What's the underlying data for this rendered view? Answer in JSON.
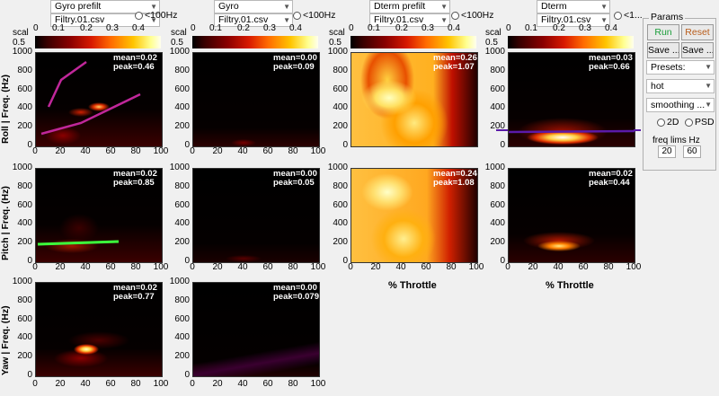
{
  "columns": [
    {
      "dropdown_label": "Gyro prefilt",
      "file": "Filtry.01.csv"
    },
    {
      "dropdown_label": "Gyro",
      "file": "Filtry.01.csv"
    },
    {
      "dropdown_label": "Dterm prefilt",
      "file": "Filtry.01.csv"
    },
    {
      "dropdown_label": "Dterm",
      "file": "Filtry.01.csv"
    }
  ],
  "radio_lt100": "<100Hz",
  "radio_lt100_truncated": "<1...",
  "colorbar": {
    "scal_label": "scal",
    "scal_value": "0.5",
    "ticks": [
      "0",
      "0.1",
      "0.2",
      "0.3",
      "0.4"
    ]
  },
  "axes": {
    "y_ticks": [
      "1000",
      "800",
      "600",
      "400",
      "200",
      "0"
    ],
    "x_ticks": [
      "0",
      "20",
      "40",
      "60",
      "80",
      "100"
    ],
    "x_label": "% Throttle",
    "row_labels": [
      "Roll  |  Freq. (Hz)",
      "Pitch  |  Freq. (Hz)",
      "Yaw  |  Freq. (Hz)"
    ]
  },
  "stats": {
    "r1c1": {
      "mean": "mean=0.02",
      "peak": "peak=0.46"
    },
    "r1c2": {
      "mean": "mean=0.00",
      "peak": "peak=0.09"
    },
    "r1c3": {
      "mean": "mean=0.26",
      "peak": "peak=1.07"
    },
    "r1c4": {
      "mean": "mean=0.03",
      "peak": "peak=0.66"
    },
    "r2c1": {
      "mean": "mean=0.02",
      "peak": "peak=0.85"
    },
    "r2c2": {
      "mean": "mean=0.00",
      "peak": "peak=0.05"
    },
    "r2c3": {
      "mean": "mean=0.24",
      "peak": "peak=1.08"
    },
    "r2c4": {
      "mean": "mean=0.02",
      "peak": "peak=0.44"
    },
    "r3c1": {
      "mean": "mean=0.02",
      "peak": "peak=0.77"
    },
    "r3c2": {
      "mean": "mean=0.00",
      "peak": "peak=0.079"
    }
  },
  "params": {
    "title": "Params",
    "run": "Run",
    "reset": "Reset",
    "save1": "Save ...",
    "save2": "Save ...",
    "presets": "Presets:",
    "colormap": "hot",
    "smoothing": "smoothing ...",
    "radio_2d": "2D",
    "radio_psd": "PSD",
    "freq_lims_label": "freq lims Hz",
    "freq_min": "20",
    "freq_max": "60"
  },
  "colors": {
    "run": "#1a9e3a",
    "reset": "#b85c1a",
    "overlay_magenta": "#c0279a",
    "overlay_green": "#3cff3c",
    "overlay_purple": "#5a1aa8"
  }
}
